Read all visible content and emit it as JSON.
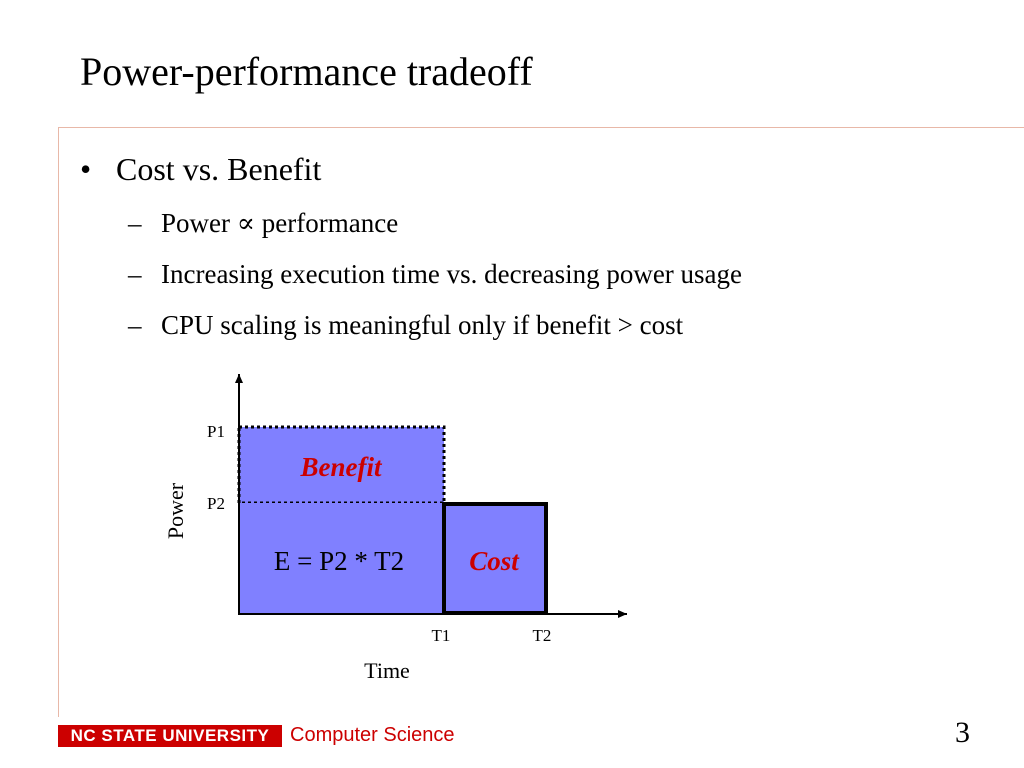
{
  "slide": {
    "title": "Power-performance tradeoff",
    "bullet": "•",
    "dash": "–",
    "main_point": "Cost vs. Benefit",
    "sub_points": [
      "Power ∝  performance",
      "Increasing execution time vs. decreasing power usage",
      "CPU scaling is meaningful only if benefit > cost"
    ]
  },
  "diagram": {
    "y_axis_label": "Power",
    "x_axis_label": "Time",
    "y_ticks": [
      "P1",
      "P2"
    ],
    "x_ticks": [
      "T1",
      "T2"
    ],
    "energy_label": "E = P2 * T2",
    "benefit_label": "Benefit",
    "cost_label": "Cost",
    "colors": {
      "fill": "#8080ff",
      "emphasis_text": "#cc0000",
      "outline": "#000000"
    }
  },
  "footer": {
    "logo_text": "NC STATE UNIVERSITY",
    "department": "Computer Science",
    "page_number": "3",
    "colors": {
      "brand": "#cc0000"
    }
  }
}
